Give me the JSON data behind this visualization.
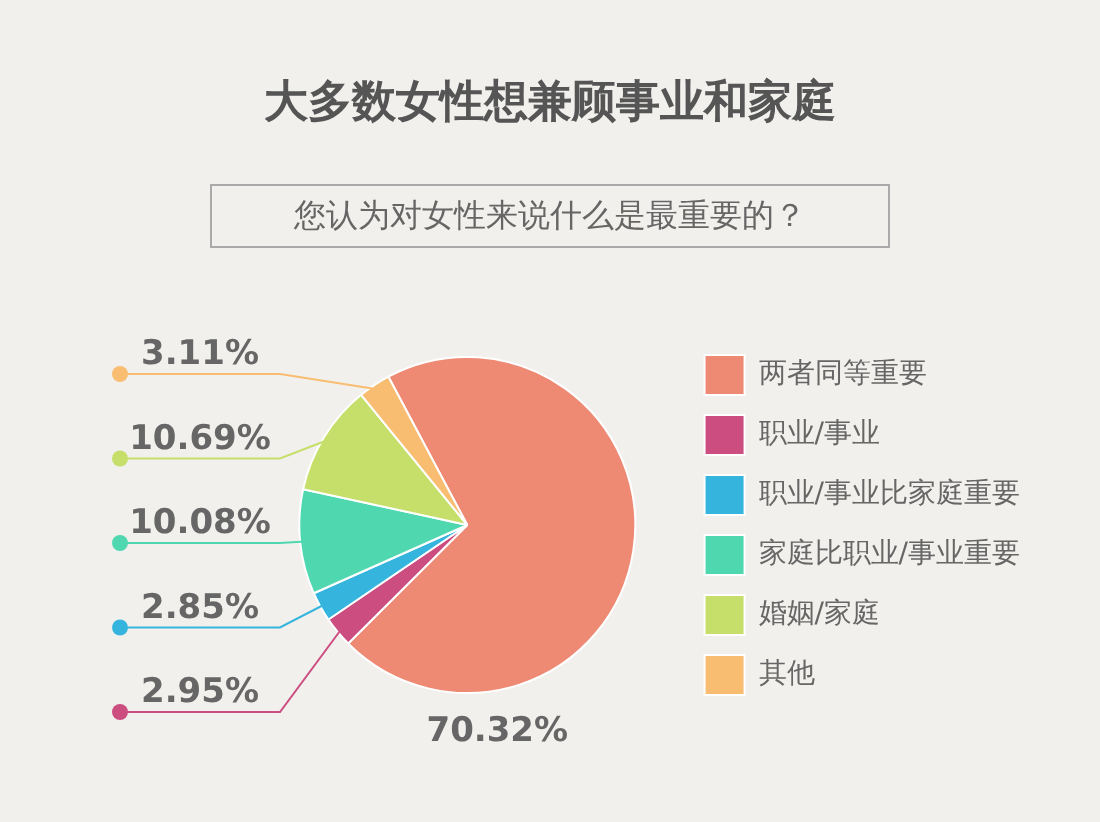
{
  "chart_data": {
    "type": "pie",
    "title": "大多数女性想兼顾事业和家庭",
    "subtitle": "您认为对女性来说什么是最重要的？",
    "categories": [
      "两者同等重要",
      "职业/事业",
      "职业/事业比家庭重要",
      "家庭比职业/事业重要",
      "婚姻/家庭",
      "其他"
    ],
    "values": [
      70.32,
      2.95,
      2.85,
      10.08,
      10.69,
      3.11
    ],
    "value_labels": [
      "70.32%",
      "2.95%",
      "2.85%",
      "10.08%",
      "10.69%",
      "3.11%"
    ],
    "colors": [
      "#ee8a74",
      "#cc4e80",
      "#35b5dd",
      "#4fd8b0",
      "#c5df6a",
      "#f9bd72"
    ],
    "legend": "right"
  }
}
